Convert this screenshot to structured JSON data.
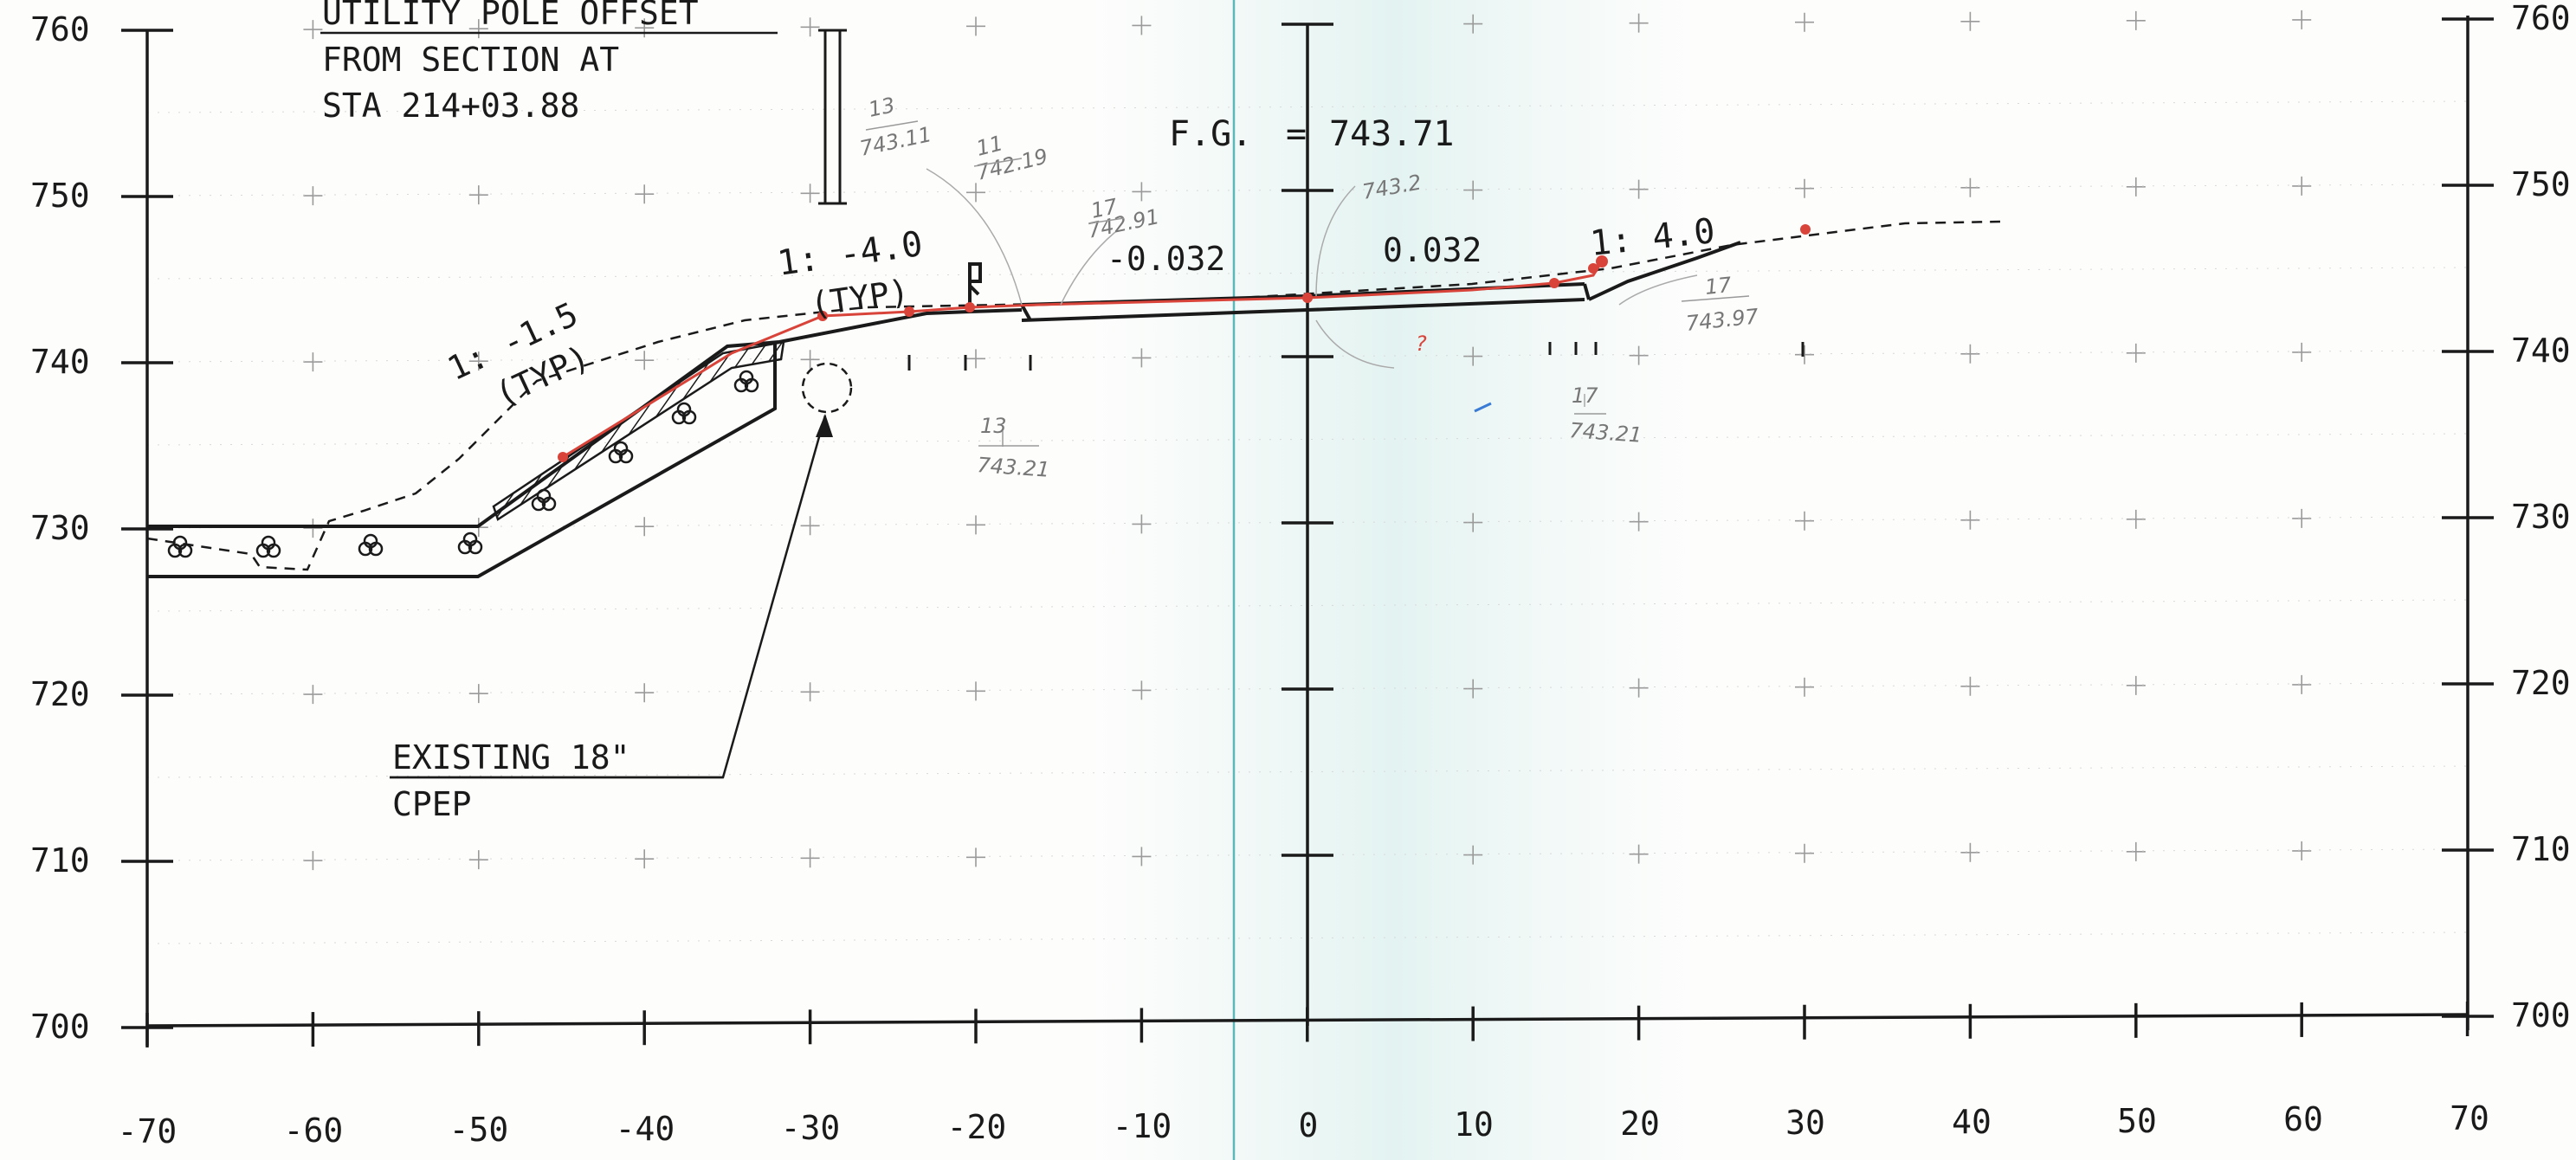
{
  "sheet": {
    "title_lines": [
      "UTILITY POLE OFFSET",
      "FROM SECTION AT",
      "STA 214+03.88"
    ],
    "fg_label": "F.G.",
    "fg_equals": "=",
    "fg_value": "743.71",
    "slope_left_side": "1: -1.5",
    "slope_left_side_note": "(TYP)",
    "slope_left_ditch": "1: -4.0",
    "slope_left_ditch_note": "(TYP)",
    "cross_slope_left": "-0.032",
    "cross_slope_right": "0.032",
    "slope_right": "1: 4.0",
    "callout_line1": "EXISTING 18\"",
    "callout_line2": "CPEP"
  },
  "axes": {
    "x_ticks": [
      "-70",
      "-60",
      "-50",
      "-40",
      "-30",
      "-20",
      "-10",
      "0",
      "10",
      "20",
      "30",
      "40",
      "50",
      "60",
      "70"
    ],
    "y_ticks_left": [
      "760",
      "750",
      "740",
      "730",
      "720",
      "710",
      "700"
    ],
    "y_ticks_right": [
      "760",
      "750",
      "740",
      "730",
      "720",
      "710",
      "700"
    ]
  },
  "handwritten": [
    {
      "text": "13",
      "sub": "743.11"
    },
    {
      "text": "11",
      "sub": "742.19"
    },
    {
      "text": "17",
      "sub": "742.91"
    },
    {
      "text": "743.2"
    },
    {
      "text": "13",
      "sub": "743.21"
    },
    {
      "text": "17",
      "sub": "743.97"
    },
    {
      "text": "17",
      "sub": "743.21"
    },
    {
      "text": "?"
    }
  ],
  "colors": {
    "ink": "#1a1a1a",
    "grid": "#9a9a9a",
    "redline": "#d9443a",
    "center_band": "#5ab8b8"
  }
}
